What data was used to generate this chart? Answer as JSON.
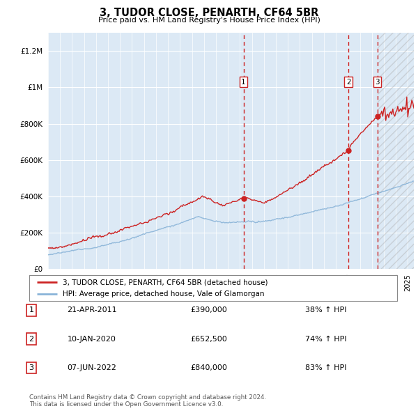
{
  "title": "3, TUDOR CLOSE, PENARTH, CF64 5BR",
  "subtitle": "Price paid vs. HM Land Registry's House Price Index (HPI)",
  "ylim": [
    0,
    1300000
  ],
  "yticks": [
    0,
    200000,
    400000,
    600000,
    800000,
    1000000,
    1200000
  ],
  "ytick_labels": [
    "£0",
    "£200K",
    "£400K",
    "£600K",
    "£800K",
    "£1M",
    "£1.2M"
  ],
  "plot_bg_color": "#dce9f5",
  "hpi_color": "#8ab4d8",
  "price_color": "#cc2222",
  "vline_color": "#cc2222",
  "transactions": [
    {
      "label": "1",
      "date_str": "21-APR-2011",
      "year": 2011.3,
      "price": 390000,
      "pct": "38% ↑ HPI"
    },
    {
      "label": "2",
      "date_str": "10-JAN-2020",
      "year": 2020.05,
      "price": 652500,
      "pct": "74% ↑ HPI"
    },
    {
      "label": "3",
      "date_str": "07-JUN-2022",
      "year": 2022.45,
      "price": 840000,
      "pct": "83% ↑ HPI"
    }
  ],
  "legend_property_label": "3, TUDOR CLOSE, PENARTH, CF64 5BR (detached house)",
  "legend_hpi_label": "HPI: Average price, detached house, Vale of Glamorgan",
  "footnote": "Contains HM Land Registry data © Crown copyright and database right 2024.\nThis data is licensed under the Open Government Licence v3.0.",
  "xmin": 1995,
  "xmax": 2025.5
}
